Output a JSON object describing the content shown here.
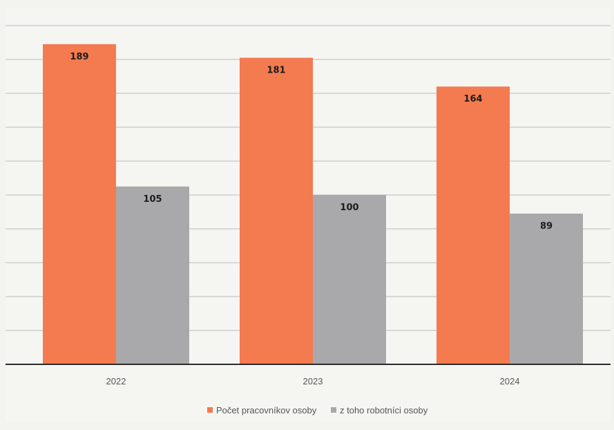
{
  "chart_data": {
    "type": "bar",
    "categories": [
      "2022",
      "2023",
      "2024"
    ],
    "series": [
      {
        "name": "Počet pracovníkov osoby",
        "values": [
          189,
          181,
          164
        ],
        "color": "#f47a50"
      },
      {
        "name": "z toho robotníci osoby",
        "values": [
          105,
          100,
          89
        ],
        "color": "#a9a9ab"
      }
    ],
    "ylim": [
      0,
      200
    ],
    "grid": true,
    "legend_position": "bottom"
  }
}
